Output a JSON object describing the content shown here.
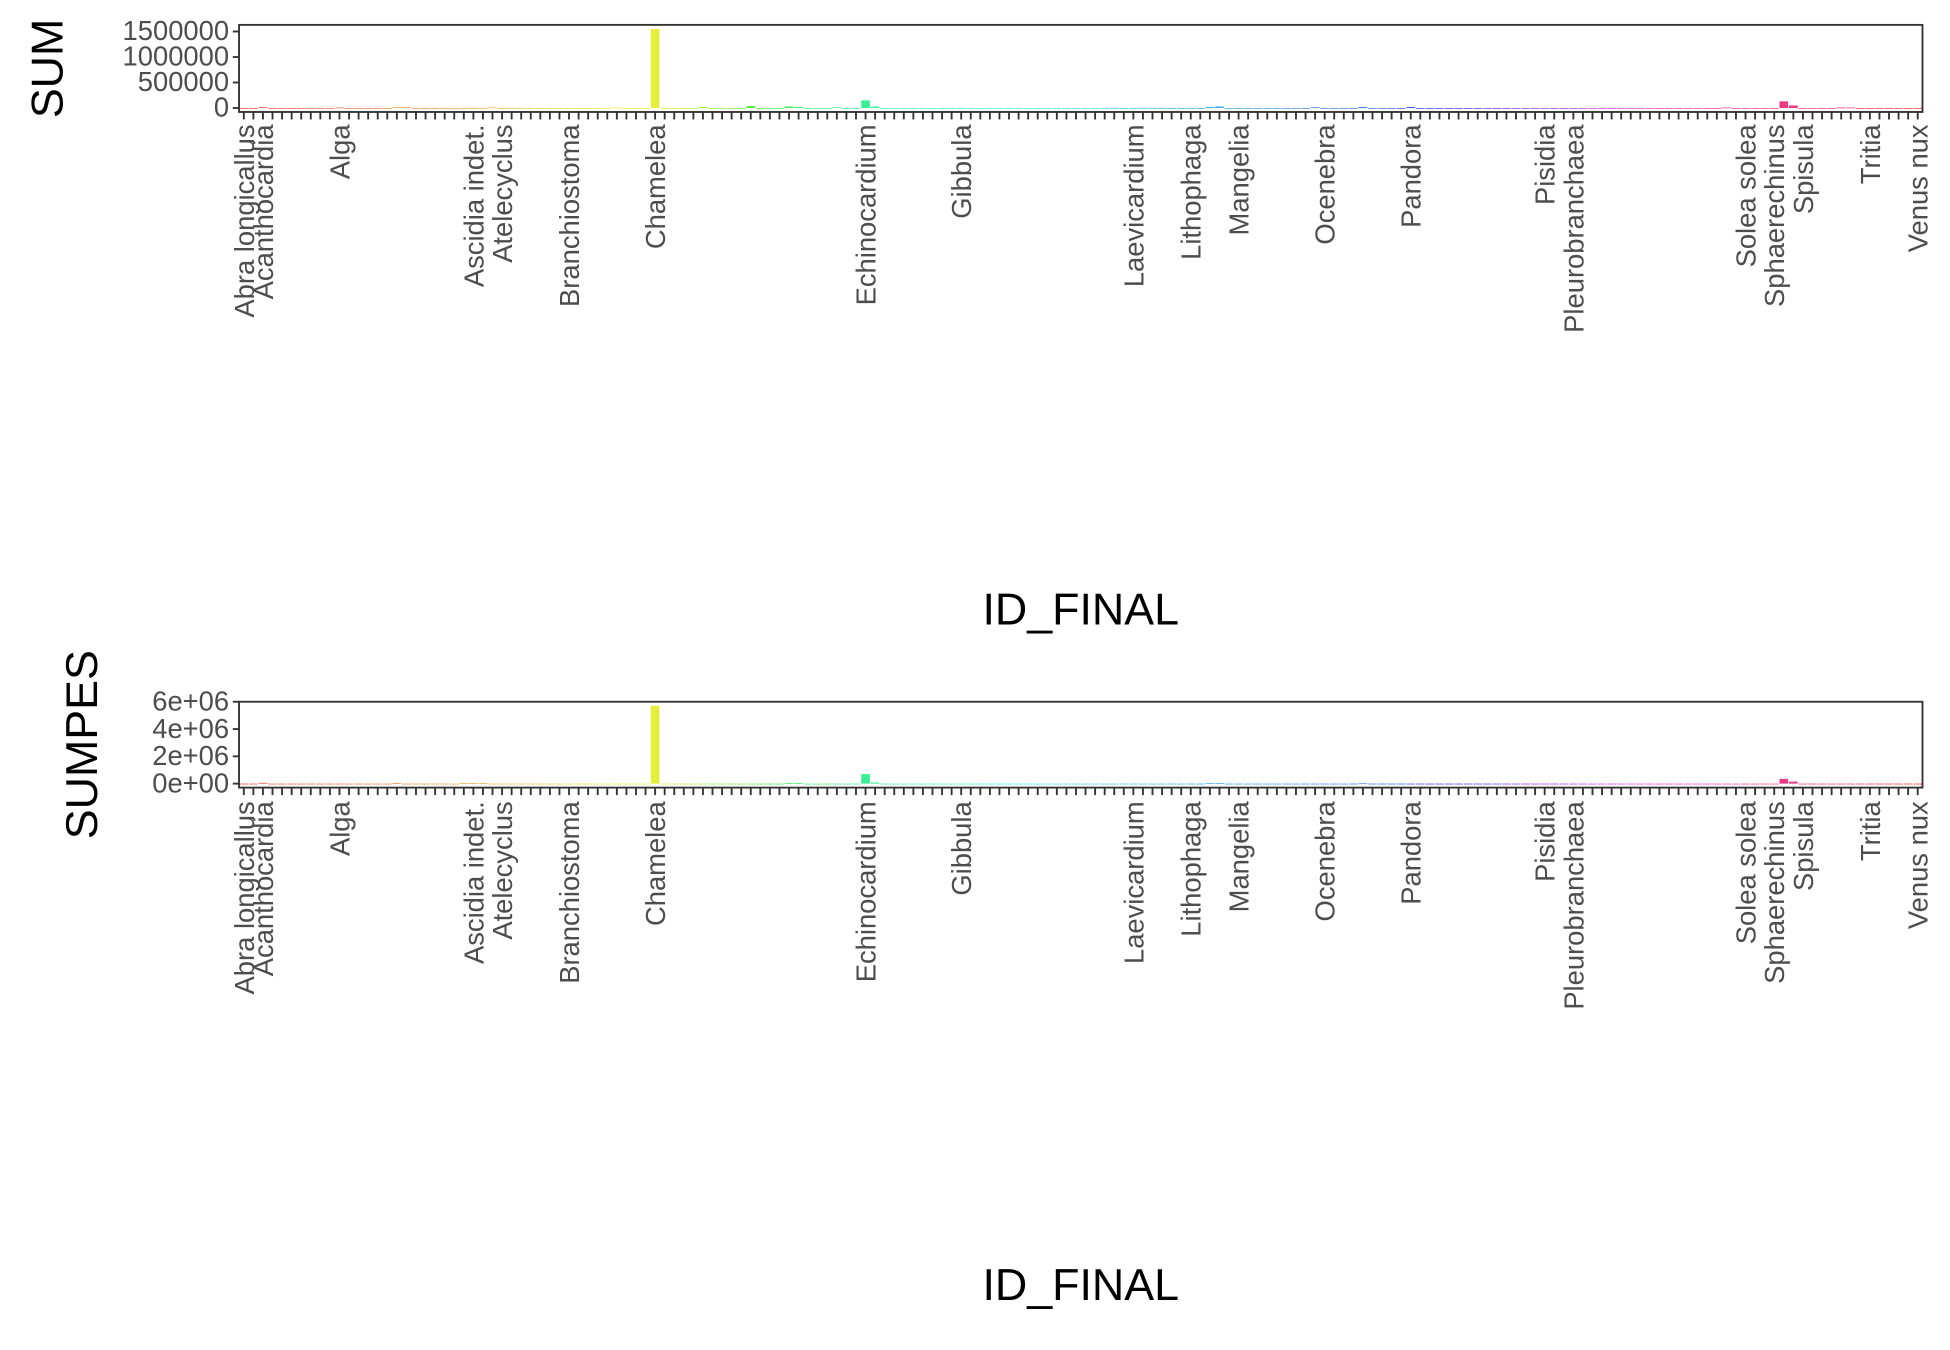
{
  "chart_data": [
    {
      "type": "bar",
      "y_label": "SUM",
      "x_label": "ID_FINAL",
      "color_scale": "hue",
      "categories": [
        "Abra longicallus",
        null,
        "Acanthocardia",
        null,
        null,
        null,
        null,
        null,
        null,
        null,
        "Alga",
        null,
        null,
        null,
        null,
        null,
        null,
        null,
        null,
        null,
        null,
        null,
        null,
        null,
        "Ascidia indet.",
        null,
        null,
        "Atelecyclus",
        null,
        null,
        null,
        null,
        null,
        null,
        "Branchiostoma",
        null,
        null,
        null,
        null,
        null,
        null,
        null,
        null,
        "Chamelea",
        null,
        null,
        null,
        null,
        null,
        null,
        null,
        null,
        null,
        null,
        null,
        null,
        null,
        null,
        null,
        null,
        null,
        null,
        null,
        null,
        null,
        "Echinocardium",
        null,
        null,
        null,
        null,
        null,
        null,
        null,
        null,
        null,
        "Gibbula",
        null,
        null,
        null,
        null,
        null,
        null,
        null,
        null,
        null,
        null,
        null,
        null,
        null,
        null,
        null,
        null,
        null,
        "Laevicardium",
        null,
        null,
        null,
        null,
        null,
        "Lithophaga",
        null,
        null,
        null,
        null,
        "Mangelia",
        null,
        null,
        null,
        null,
        null,
        null,
        null,
        null,
        "Ocenebra",
        null,
        null,
        null,
        null,
        null,
        null,
        null,
        null,
        "Pandora",
        null,
        null,
        null,
        null,
        null,
        null,
        null,
        null,
        null,
        null,
        null,
        null,
        null,
        "Pisidia",
        null,
        null,
        "Pleurobranchaea",
        null,
        null,
        null,
        null,
        null,
        null,
        null,
        null,
        null,
        null,
        null,
        null,
        null,
        null,
        null,
        null,
        null,
        "Solea solea",
        null,
        null,
        "Sphaerechinus",
        null,
        null,
        "Spisula",
        null,
        null,
        null,
        null,
        null,
        null,
        "Tritia",
        null,
        null,
        null,
        null,
        "Venus nux"
      ],
      "values": [
        0,
        0,
        15000,
        0,
        0,
        0,
        0,
        0,
        0,
        0,
        10000,
        0,
        0,
        0,
        0,
        0,
        15000,
        15000,
        0,
        0,
        0,
        0,
        0,
        0,
        0,
        0,
        12000,
        0,
        0,
        0,
        0,
        0,
        0,
        0,
        0,
        0,
        0,
        0,
        0,
        10000,
        0,
        0,
        0,
        1550000,
        0,
        0,
        0,
        0,
        20000,
        0,
        0,
        0,
        0,
        40000,
        0,
        0,
        0,
        30000,
        20000,
        0,
        0,
        0,
        15000,
        0,
        0,
        150000,
        30000,
        0,
        0,
        0,
        0,
        0,
        0,
        0,
        0,
        0,
        0,
        0,
        0,
        0,
        0,
        0,
        0,
        0,
        0,
        0,
        0,
        0,
        0,
        0,
        0,
        0,
        0,
        0,
        0,
        0,
        0,
        0,
        0,
        0,
        0,
        20000,
        30000,
        0,
        0,
        0,
        0,
        0,
        0,
        0,
        0,
        0,
        15000,
        0,
        0,
        0,
        0,
        20000,
        0,
        0,
        0,
        0,
        20000,
        0,
        0,
        0,
        0,
        0,
        0,
        0,
        0,
        0,
        0,
        0,
        0,
        0,
        0,
        0,
        0,
        0,
        0,
        0,
        0,
        0,
        0,
        0,
        0,
        0,
        0,
        0,
        0,
        0,
        0,
        0,
        0,
        10000,
        0,
        0,
        0,
        0,
        0,
        130000,
        50000,
        0,
        0,
        0,
        0,
        10000,
        10000,
        0,
        0,
        0,
        0,
        0,
        0,
        0
      ],
      "ylim": [
        -78000,
        1630000
      ],
      "yticks": [
        0,
        500000,
        1000000,
        1500000
      ]
    },
    {
      "type": "bar",
      "y_label": "SUMPES",
      "x_label": "ID_FINAL",
      "color_scale": "hue",
      "categories": [
        "Abra longicallus",
        null,
        "Acanthocardia",
        null,
        null,
        null,
        null,
        null,
        null,
        null,
        "Alga",
        null,
        null,
        null,
        null,
        null,
        null,
        null,
        null,
        null,
        null,
        null,
        null,
        null,
        "Ascidia indet.",
        null,
        null,
        "Atelecyclus",
        null,
        null,
        null,
        null,
        null,
        null,
        "Branchiostoma",
        null,
        null,
        null,
        null,
        null,
        null,
        null,
        null,
        "Chamelea",
        null,
        null,
        null,
        null,
        null,
        null,
        null,
        null,
        null,
        null,
        null,
        null,
        null,
        null,
        null,
        null,
        null,
        null,
        null,
        null,
        null,
        "Echinocardium",
        null,
        null,
        null,
        null,
        null,
        null,
        null,
        null,
        null,
        "Gibbula",
        null,
        null,
        null,
        null,
        null,
        null,
        null,
        null,
        null,
        null,
        null,
        null,
        null,
        null,
        null,
        null,
        null,
        "Laevicardium",
        null,
        null,
        null,
        null,
        null,
        "Lithophaga",
        null,
        null,
        null,
        null,
        "Mangelia",
        null,
        null,
        null,
        null,
        null,
        null,
        null,
        null,
        "Ocenebra",
        null,
        null,
        null,
        null,
        null,
        null,
        null,
        null,
        "Pandora",
        null,
        null,
        null,
        null,
        null,
        null,
        null,
        null,
        null,
        null,
        null,
        null,
        null,
        "Pisidia",
        null,
        null,
        "Pleurobranchaea",
        null,
        null,
        null,
        null,
        null,
        null,
        null,
        null,
        null,
        null,
        null,
        null,
        null,
        null,
        null,
        null,
        null,
        "Solea solea",
        null,
        null,
        "Sphaerechinus",
        null,
        null,
        "Spisula",
        null,
        null,
        null,
        null,
        null,
        null,
        "Tritia",
        null,
        null,
        null,
        null,
        "Venus nux"
      ],
      "values": [
        0,
        0,
        60000,
        0,
        0,
        0,
        0,
        0,
        0,
        0,
        0,
        0,
        0,
        0,
        0,
        0,
        40000,
        0,
        0,
        0,
        0,
        0,
        0,
        40000,
        40000,
        40000,
        0,
        0,
        0,
        0,
        0,
        0,
        0,
        0,
        0,
        0,
        0,
        0,
        0,
        0,
        0,
        0,
        0,
        5700000,
        0,
        0,
        0,
        0,
        0,
        0,
        0,
        0,
        0,
        0,
        0,
        0,
        0,
        30000,
        30000,
        0,
        0,
        0,
        0,
        0,
        0,
        700000,
        80000,
        0,
        0,
        0,
        0,
        0,
        0,
        0,
        0,
        0,
        0,
        0,
        0,
        0,
        0,
        0,
        0,
        0,
        0,
        0,
        0,
        0,
        0,
        0,
        0,
        0,
        0,
        0,
        0,
        0,
        0,
        0,
        0,
        0,
        0,
        40000,
        40000,
        0,
        0,
        0,
        0,
        0,
        0,
        0,
        0,
        0,
        0,
        0,
        0,
        0,
        0,
        20000,
        0,
        0,
        0,
        0,
        0,
        0,
        0,
        0,
        0,
        0,
        0,
        0,
        0,
        0,
        0,
        0,
        0,
        0,
        0,
        0,
        0,
        0,
        0,
        0,
        0,
        0,
        0,
        0,
        0,
        0,
        0,
        0,
        0,
        0,
        0,
        0,
        0,
        0,
        0,
        0,
        0,
        0,
        0,
        350000,
        150000,
        0,
        0,
        0,
        0,
        0,
        0,
        0,
        0,
        0,
        0,
        0,
        0,
        0
      ],
      "ylim": [
        -290000,
        6000000
      ],
      "yticks": [
        {
          "value": 0,
          "label": "0e+00"
        },
        {
          "value": 2000000,
          "label": "2e+06"
        },
        {
          "value": 4000000,
          "label": "4e+06"
        },
        {
          "value": 6000000,
          "label": "6e+06"
        }
      ]
    }
  ]
}
